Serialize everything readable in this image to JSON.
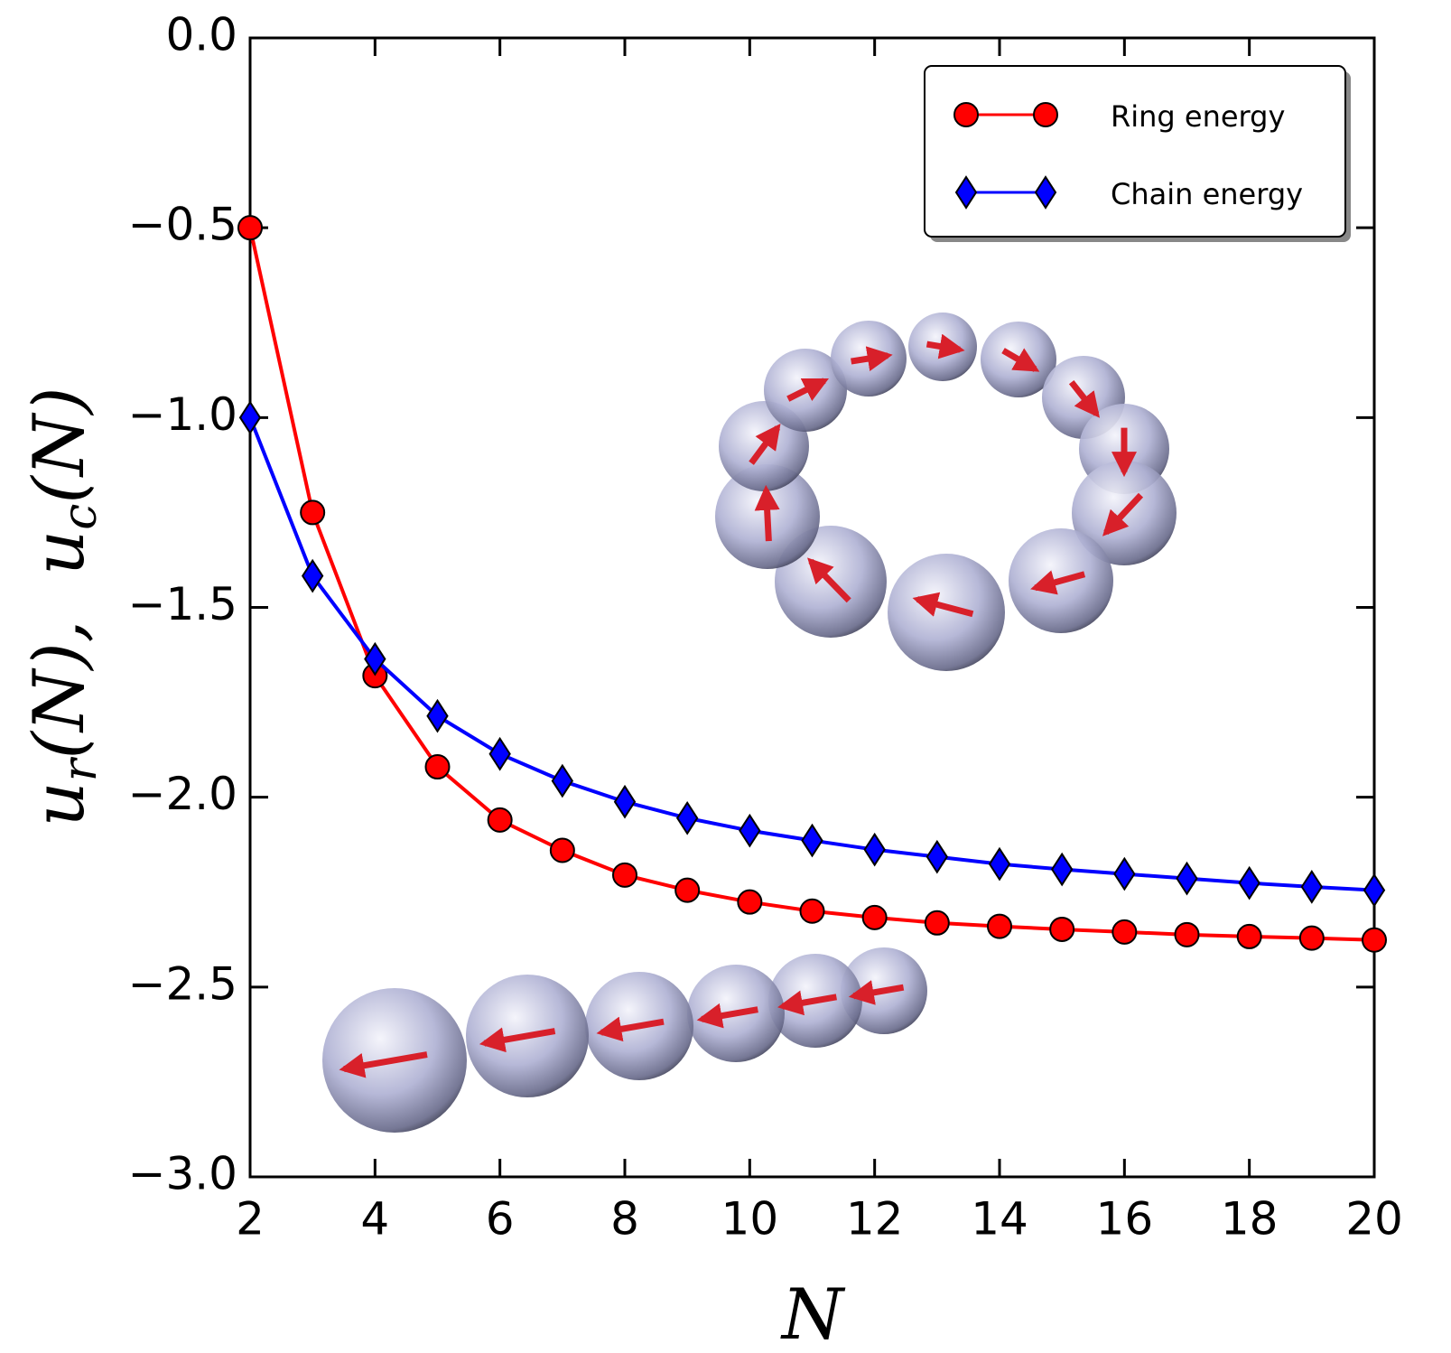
{
  "chart_data": {
    "type": "line",
    "x_label": "N",
    "y_label": "u_r(N),  u_c(N)",
    "x": [
      2,
      3,
      4,
      5,
      6,
      7,
      8,
      9,
      10,
      11,
      12,
      13,
      14,
      15,
      16,
      17,
      18,
      19,
      20
    ],
    "series": [
      {
        "name": "Ring energy",
        "color": "#ff0000",
        "marker": "circle",
        "values": [
          -0.5,
          -1.25,
          -1.68,
          -1.92,
          -2.06,
          -2.14,
          -2.205,
          -2.245,
          -2.276,
          -2.3,
          -2.317,
          -2.331,
          -2.34,
          -2.348,
          -2.355,
          -2.362,
          -2.367,
          -2.371,
          -2.376
        ]
      },
      {
        "name": "Chain energy",
        "color": "#0000ff",
        "marker": "diamond",
        "values": [
          -1.0,
          -1.417,
          -1.636,
          -1.786,
          -1.886,
          -1.957,
          -2.012,
          -2.055,
          -2.088,
          -2.114,
          -2.138,
          -2.157,
          -2.176,
          -2.19,
          -2.202,
          -2.214,
          -2.226,
          -2.236,
          -2.245
        ]
      }
    ],
    "xlim": [
      2,
      20
    ],
    "ylim": [
      -3,
      0
    ],
    "xticks": [
      2,
      4,
      6,
      8,
      10,
      12,
      14,
      16,
      18,
      20
    ],
    "yticks": [
      {
        "value": -3,
        "label": "−3.0"
      },
      {
        "value": -2.5,
        "label": "−2.5"
      },
      {
        "value": -2,
        "label": "−2.0"
      },
      {
        "value": -1.5,
        "label": "−1.5"
      },
      {
        "value": -1,
        "label": "−1.0"
      },
      {
        "value": -0.5,
        "label": "−0.5"
      },
      {
        "value": 0,
        "label": "0.0"
      }
    ],
    "legend_position": "upper right",
    "grid": false
  }
}
